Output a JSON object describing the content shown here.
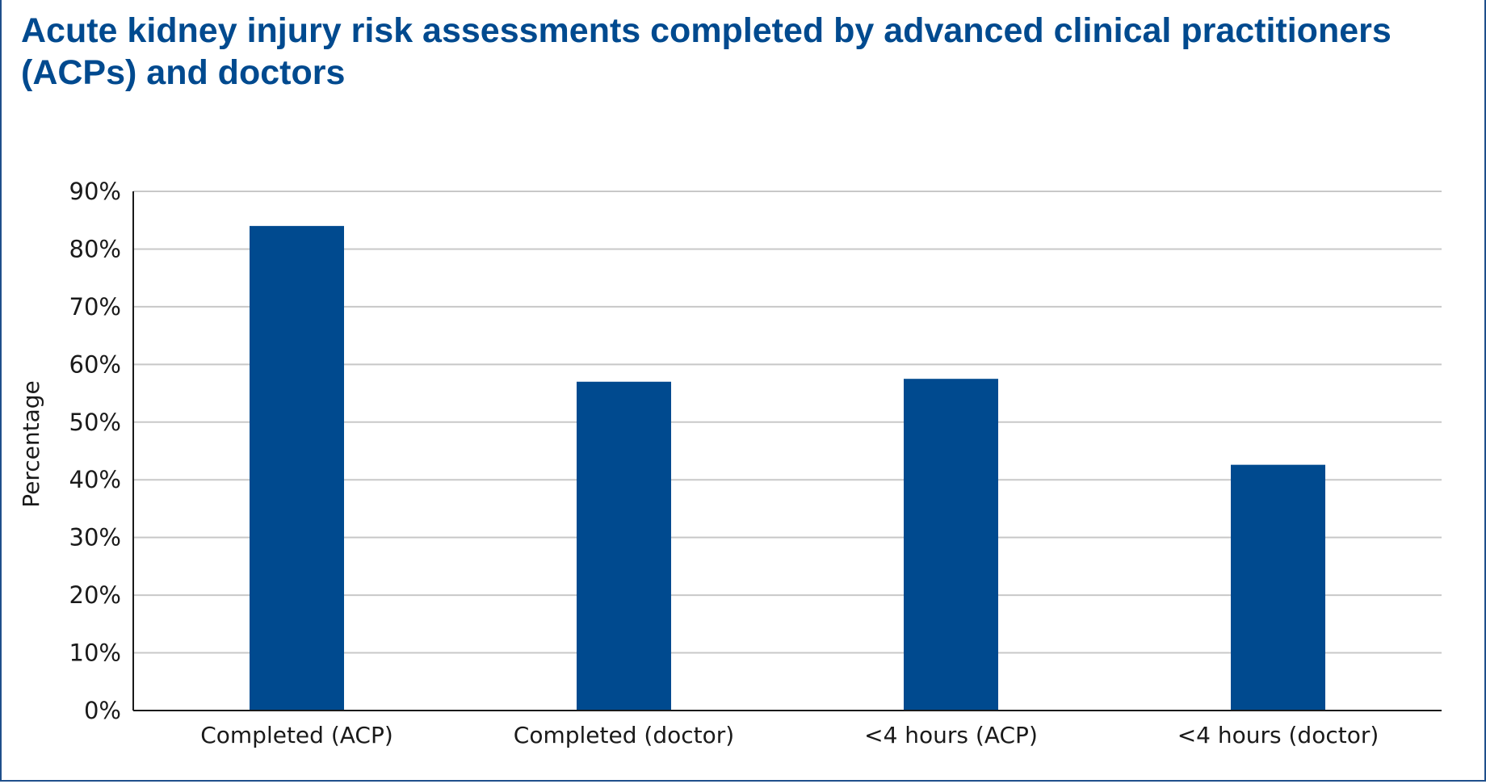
{
  "chart_data": {
    "type": "bar",
    "title": "Acute kidney injury risk assessments completed by advanced clinical practitioners (ACPs) and doctors",
    "xlabel": "",
    "ylabel": "Percentage",
    "categories": [
      "Completed (ACP)",
      "Completed (doctor)",
      "<4 hours (ACP)",
      "<4 hours (doctor)"
    ],
    "values": [
      84,
      57,
      57.5,
      42.6
    ],
    "ylim": [
      0,
      90
    ],
    "yticks": [
      0,
      10,
      20,
      30,
      40,
      50,
      60,
      70,
      80,
      90
    ],
    "ytick_labels": [
      "0%",
      "10%",
      "20%",
      "30%",
      "40%",
      "50%",
      "60%",
      "70%",
      "80%",
      "90%"
    ],
    "grid": true,
    "bar_color": "#004a8f",
    "grid_color": "#c8c8c8",
    "axis_color": "#1a1a1a"
  }
}
